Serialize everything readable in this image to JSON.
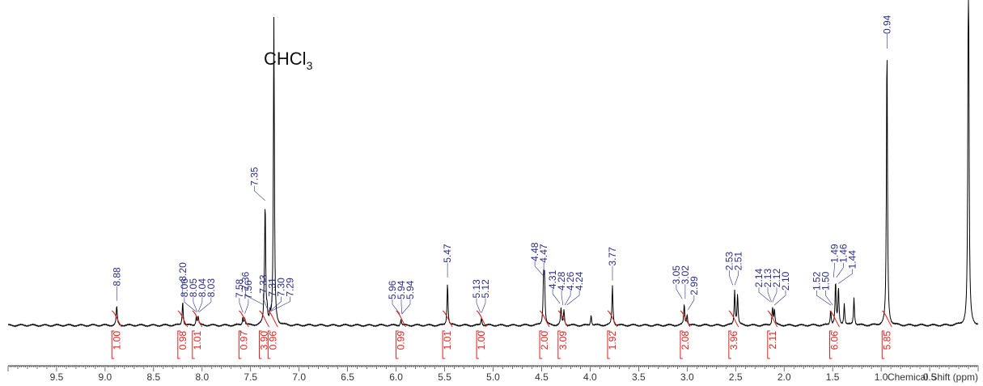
{
  "colors": {
    "spectrum": "#000000",
    "peak_label": "#2b2b8a",
    "integral": "#e0201c",
    "axis": "#333333"
  },
  "chart_data": {
    "type": "line",
    "xlabel": "Chemical Shift (ppm)",
    "xlim": [
      10.0,
      0.0
    ],
    "x_reversed": true,
    "axis_ticks": [
      "9.5",
      "9.0",
      "8.5",
      "8.0",
      "7.5",
      "7.0",
      "6.5",
      "6.0",
      "5.5",
      "5.0",
      "4.5",
      "4.0",
      "3.5",
      "3.0",
      "2.5",
      "2.0",
      "1.5",
      "1.0",
      "0.5"
    ],
    "solvent_annotation": "CHCl",
    "solvent_subscript": "3",
    "peak_labels": [
      {
        "ppm": 8.88,
        "text": "8.88"
      },
      {
        "ppm": 8.2,
        "text": "8.20"
      },
      {
        "ppm": 8.06,
        "text": "8.06"
      },
      {
        "ppm": 8.05,
        "text": "8.05"
      },
      {
        "ppm": 8.04,
        "text": "8.04"
      },
      {
        "ppm": 8.03,
        "text": "8.03"
      },
      {
        "ppm": 7.58,
        "text": "7.58"
      },
      {
        "ppm": 7.56,
        "text": "7.56"
      },
      {
        "ppm": 7.36,
        "text": "7.36"
      },
      {
        "ppm": 7.35,
        "text": "7.35"
      },
      {
        "ppm": 7.33,
        "text": "7.33"
      },
      {
        "ppm": 7.31,
        "text": "7.31"
      },
      {
        "ppm": 7.3,
        "text": "7.30"
      },
      {
        "ppm": 7.29,
        "text": "7.29"
      },
      {
        "ppm": 5.96,
        "text": "5.96"
      },
      {
        "ppm": 5.94,
        "text": "5.94"
      },
      {
        "ppm": 5.94,
        "text": "5.94"
      },
      {
        "ppm": 5.47,
        "text": "5.47"
      },
      {
        "ppm": 5.13,
        "text": "5.13"
      },
      {
        "ppm": 5.12,
        "text": "5.12"
      },
      {
        "ppm": 4.48,
        "text": "4.48"
      },
      {
        "ppm": 4.47,
        "text": "4.47"
      },
      {
        "ppm": 4.31,
        "text": "4.31"
      },
      {
        "ppm": 4.28,
        "text": "4.28"
      },
      {
        "ppm": 4.26,
        "text": "4.26"
      },
      {
        "ppm": 4.24,
        "text": "4.24"
      },
      {
        "ppm": 3.77,
        "text": "3.77"
      },
      {
        "ppm": 3.05,
        "text": "3.05"
      },
      {
        "ppm": 3.02,
        "text": "3.02"
      },
      {
        "ppm": 2.99,
        "text": "2.99"
      },
      {
        "ppm": 2.53,
        "text": "2.53"
      },
      {
        "ppm": 2.51,
        "text": "2.51"
      },
      {
        "ppm": 2.14,
        "text": "2.14"
      },
      {
        "ppm": 2.13,
        "text": "2.13"
      },
      {
        "ppm": 2.12,
        "text": "2.12"
      },
      {
        "ppm": 2.1,
        "text": "2.10"
      },
      {
        "ppm": 1.52,
        "text": "1.52"
      },
      {
        "ppm": 1.5,
        "text": "1.50"
      },
      {
        "ppm": 1.49,
        "text": "1.49"
      },
      {
        "ppm": 1.46,
        "text": "1.46"
      },
      {
        "ppm": 1.44,
        "text": "1.44"
      },
      {
        "ppm": 0.94,
        "text": "0.94"
      }
    ],
    "integrals": [
      {
        "center": 8.88,
        "value": "1.00"
      },
      {
        "center": 8.2,
        "value": "0.98"
      },
      {
        "center": 8.05,
        "value": "1.01"
      },
      {
        "center": 7.57,
        "value": "0.97"
      },
      {
        "center": 7.36,
        "value": "3.90"
      },
      {
        "center": 7.27,
        "value": "0.96"
      },
      {
        "center": 5.95,
        "value": "0.99"
      },
      {
        "center": 5.47,
        "value": "1.01"
      },
      {
        "center": 5.12,
        "value": "1.00"
      },
      {
        "center": 4.47,
        "value": "2.00"
      },
      {
        "center": 4.28,
        "value": "3.09"
      },
      {
        "center": 3.77,
        "value": "1.92"
      },
      {
        "center": 3.02,
        "value": "2.08"
      },
      {
        "center": 2.52,
        "value": "3.96"
      },
      {
        "center": 2.12,
        "value": "2.11"
      },
      {
        "center": 1.48,
        "value": "6.06"
      },
      {
        "center": 0.94,
        "value": "5.85"
      }
    ],
    "peaks": [
      {
        "ppm": 8.88,
        "height": 0.064
      },
      {
        "ppm": 8.2,
        "height": 0.08
      },
      {
        "ppm": 8.06,
        "height": 0.028
      },
      {
        "ppm": 8.04,
        "height": 0.028
      },
      {
        "ppm": 7.58,
        "height": 0.026
      },
      {
        "ppm": 7.56,
        "height": 0.022
      },
      {
        "ppm": 7.36,
        "height": 0.05
      },
      {
        "ppm": 7.35,
        "height": 0.39
      },
      {
        "ppm": 7.33,
        "height": 0.04
      },
      {
        "ppm": 7.3,
        "height": 0.03
      },
      {
        "ppm": 7.26,
        "height": 1.0
      },
      {
        "ppm": 5.95,
        "height": 0.02
      },
      {
        "ppm": 5.47,
        "height": 0.14
      },
      {
        "ppm": 5.12,
        "height": 0.025
      },
      {
        "ppm": 4.48,
        "height": 0.145
      },
      {
        "ppm": 4.47,
        "height": 0.14
      },
      {
        "ppm": 4.3,
        "height": 0.055
      },
      {
        "ppm": 4.27,
        "height": 0.05
      },
      {
        "ppm": 3.99,
        "height": 0.035
      },
      {
        "ppm": 3.77,
        "height": 0.13
      },
      {
        "ppm": 3.03,
        "height": 0.07
      },
      {
        "ppm": 3.0,
        "height": 0.035
      },
      {
        "ppm": 2.51,
        "height": 0.115
      },
      {
        "ppm": 2.48,
        "height": 0.1
      },
      {
        "ppm": 2.12,
        "height": 0.06
      },
      {
        "ppm": 2.1,
        "height": 0.05
      },
      {
        "ppm": 1.52,
        "height": 0.05
      },
      {
        "ppm": 1.47,
        "height": 0.14
      },
      {
        "ppm": 1.44,
        "height": 0.12
      },
      {
        "ppm": 1.38,
        "height": 0.07
      },
      {
        "ppm": 1.28,
        "height": 0.09
      },
      {
        "ppm": 0.94,
        "height": 0.93
      },
      {
        "ppm": 0.1,
        "height": 1.4
      }
    ]
  }
}
